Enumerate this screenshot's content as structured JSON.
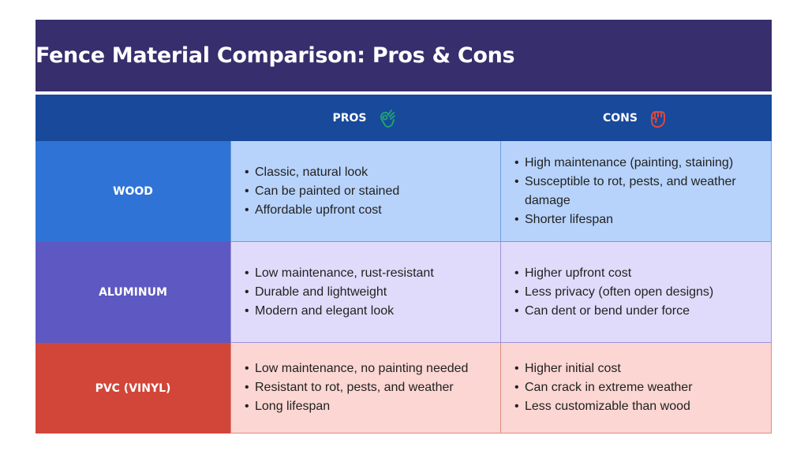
{
  "title": "Fence Material Comparison: Pros & Cons",
  "header": {
    "pros_label": "PROS",
    "cons_label": "CONS"
  },
  "colors": {
    "title_bg": "#372e6d",
    "header_bg": "#18499b",
    "pros_icon": "#1fa074",
    "cons_icon": "#d94a3d"
  },
  "icons": {
    "pros": "ok-hand-gesture-icon",
    "cons": "fist-gesture-icon"
  },
  "rows": [
    {
      "label": "WOOD",
      "label_color": "#2f73d6",
      "cell_color": "#b7d3fb",
      "border_color": "#6e9fd8",
      "pros": [
        "Classic, natural look",
        "Can be painted or stained",
        "Affordable upfront cost"
      ],
      "cons": [
        "High maintenance (painting, staining)",
        "Susceptible to rot, pests, and weather damage",
        "Shorter lifespan"
      ]
    },
    {
      "label": "ALUMINUM",
      "label_color": "#5e58c2",
      "cell_color": "#e0dbfa",
      "border_color": "#9c93d8",
      "pros": [
        "Low maintenance, rust-resistant",
        "Durable and lightweight",
        "Modern and elegant look"
      ],
      "cons": [
        "Higher upfront cost",
        "Less privacy (often open designs)",
        "Can dent or bend under force"
      ]
    },
    {
      "label": "PVC (VINYL)",
      "label_color": "#d2463a",
      "cell_color": "#fbd6d2",
      "border_color": "#e28a82",
      "pros": [
        "Low maintenance, no painting needed",
        "Resistant to rot, pests, and weather",
        "Long lifespan"
      ],
      "cons": [
        "Higher initial cost",
        "Can crack in extreme weather",
        "Less customizable than wood"
      ]
    }
  ]
}
